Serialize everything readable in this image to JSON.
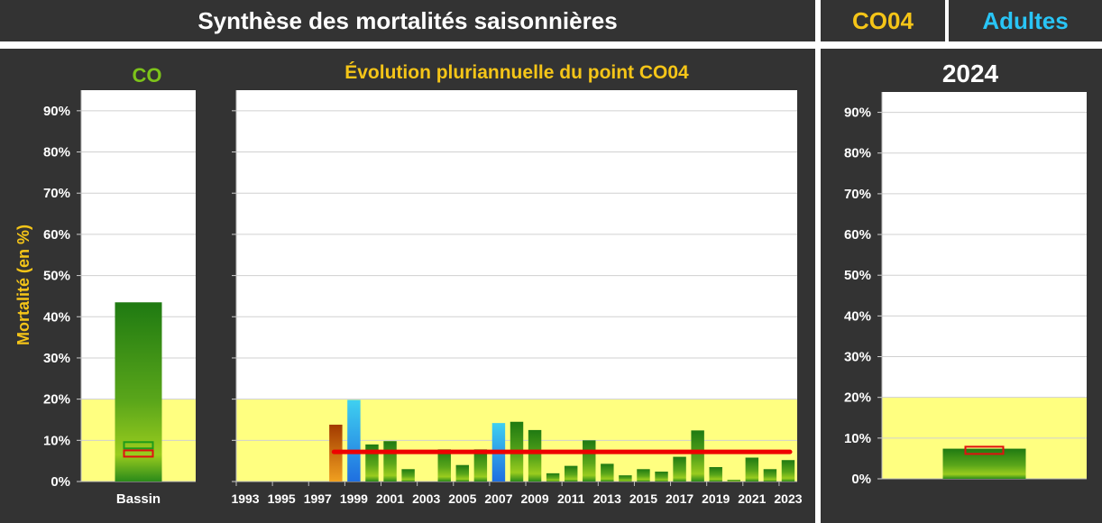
{
  "header": {
    "title": "Synthèse des mortalités saisonnières",
    "point": "CO04",
    "category": "Adultes"
  },
  "colors": {
    "panel_bg": "#333333",
    "accent_yellow": "#f5c518",
    "accent_cyan": "#29c5f6",
    "accent_green": "#7dc31a",
    "threshold_zone": "#ffff80",
    "mean_line": "#ee0000"
  },
  "y_axis": {
    "label": "Mortalité (en %)",
    "ticks": [
      "0%",
      "10%",
      "20%",
      "30%",
      "40%",
      "50%",
      "60%",
      "70%",
      "80%",
      "90%"
    ]
  },
  "chart_data": [
    {
      "type": "bar",
      "title": "CO",
      "categories": [
        "Bassin"
      ],
      "values": [
        43.5
      ],
      "ylim": [
        0,
        95
      ],
      "threshold_zone": [
        0,
        20
      ],
      "markers": [
        {
          "value": 8.8,
          "color": "green"
        },
        {
          "value": 6.8,
          "color": "red"
        }
      ]
    },
    {
      "type": "bar",
      "title": "Évolution pluriannuelle du point CO04",
      "x": [
        "1993",
        "1994",
        "1995",
        "1996",
        "1997",
        "1998",
        "1999",
        "2000",
        "2001",
        "2002",
        "2003",
        "2004",
        "2005",
        "2006",
        "2007",
        "2008",
        "2009",
        "2010",
        "2011",
        "2012",
        "2013",
        "2014",
        "2015",
        "2016",
        "2017",
        "2018",
        "2019",
        "2020",
        "2021",
        "2022",
        "2023"
      ],
      "x_tick_labels": [
        "1993",
        "1995",
        "1997",
        "1999",
        "2001",
        "2003",
        "2005",
        "2007",
        "2009",
        "2011",
        "2013",
        "2015",
        "2017",
        "2019",
        "2021",
        "2023"
      ],
      "values": [
        0,
        0,
        0,
        0,
        0,
        13.8,
        19.8,
        9.0,
        9.8,
        3.0,
        0,
        7.8,
        4.0,
        7.8,
        14.2,
        14.5,
        12.5,
        2.0,
        3.8,
        10.0,
        4.3,
        1.5,
        3.0,
        2.4,
        6.0,
        12.4,
        3.5,
        0.4,
        5.8,
        3.0,
        5.2
      ],
      "ylim": [
        0,
        95
      ],
      "threshold_zone": [
        0,
        20
      ],
      "mean_line": 7.2
    },
    {
      "type": "bar",
      "title": "2024",
      "categories": [
        "2024"
      ],
      "values": [
        7.4
      ],
      "ylim": [
        0,
        95
      ],
      "threshold_zone": [
        0,
        20
      ],
      "markers": [
        {
          "value": 7.0,
          "color": "red"
        }
      ]
    }
  ]
}
